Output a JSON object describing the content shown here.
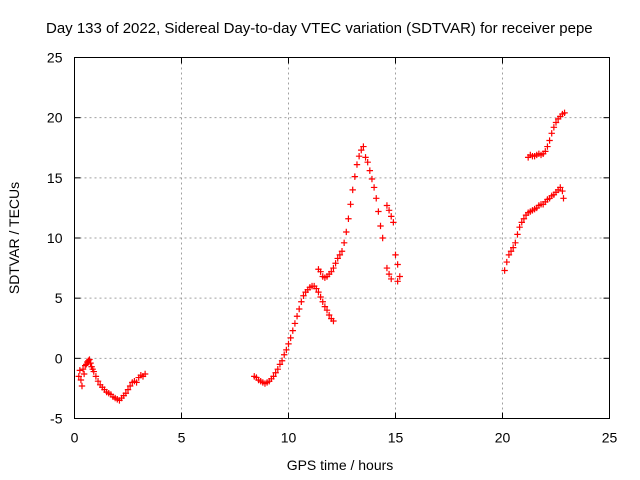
{
  "chart_data": {
    "type": "scatter",
    "title": "Day 133 of 2022, Sidereal Day-to-day VTEC variation (SDTVAR) for receiver pepe",
    "xlabel": "GPS time / hours",
    "ylabel": "SDTVAR / TECUs",
    "xlim": [
      0,
      25
    ],
    "ylim": [
      -5,
      25
    ],
    "xticks": [
      0,
      5,
      10,
      15,
      20,
      25
    ],
    "yticks": [
      -5,
      0,
      5,
      10,
      15,
      20,
      25
    ],
    "grid": true,
    "marker": "+",
    "color": "#ff0000",
    "series": [
      {
        "points": [
          [
            0.2,
            -1.5
          ],
          [
            0.25,
            -1.0
          ],
          [
            0.3,
            -1.8
          ],
          [
            0.35,
            -2.3
          ],
          [
            0.4,
            -0.9
          ],
          [
            0.45,
            -1.3
          ],
          [
            0.5,
            -0.6
          ],
          [
            0.55,
            -0.5
          ],
          [
            0.6,
            -0.3
          ],
          [
            0.65,
            -0.2
          ],
          [
            0.7,
            -0.1
          ],
          [
            0.75,
            -0.4
          ],
          [
            0.8,
            -0.7
          ],
          [
            0.85,
            -0.9
          ],
          [
            0.9,
            -1.1
          ],
          [
            1.0,
            -1.5
          ],
          [
            1.1,
            -1.9
          ],
          [
            1.2,
            -2.2
          ],
          [
            1.3,
            -2.4
          ],
          [
            1.4,
            -2.6
          ],
          [
            1.5,
            -2.8
          ],
          [
            1.6,
            -2.9
          ],
          [
            1.7,
            -3.0
          ],
          [
            1.8,
            -3.2
          ],
          [
            1.9,
            -3.3
          ],
          [
            2.0,
            -3.4
          ],
          [
            2.1,
            -3.5
          ],
          [
            2.2,
            -3.3
          ],
          [
            2.3,
            -3.1
          ],
          [
            2.4,
            -2.9
          ],
          [
            2.5,
            -2.6
          ],
          [
            2.6,
            -2.3
          ],
          [
            2.7,
            -2.0
          ],
          [
            2.8,
            -1.9
          ],
          [
            2.9,
            -2.0
          ],
          [
            3.0,
            -1.6
          ],
          [
            3.1,
            -1.4
          ],
          [
            3.2,
            -1.5
          ],
          [
            3.3,
            -1.3
          ],
          [
            8.4,
            -1.5
          ],
          [
            8.5,
            -1.6
          ],
          [
            8.6,
            -1.8
          ],
          [
            8.7,
            -1.9
          ],
          [
            8.8,
            -2.0
          ],
          [
            8.9,
            -2.1
          ],
          [
            9.0,
            -2.0
          ],
          [
            9.1,
            -1.9
          ],
          [
            9.2,
            -1.7
          ],
          [
            9.3,
            -1.5
          ],
          [
            9.4,
            -1.2
          ],
          [
            9.5,
            -0.9
          ],
          [
            9.6,
            -0.5
          ],
          [
            9.7,
            -0.2
          ],
          [
            9.8,
            0.3
          ],
          [
            9.9,
            0.7
          ],
          [
            10.0,
            1.2
          ],
          [
            10.1,
            1.7
          ],
          [
            10.2,
            2.3
          ],
          [
            10.3,
            2.9
          ],
          [
            10.4,
            3.5
          ],
          [
            10.5,
            4.1
          ],
          [
            10.6,
            4.7
          ],
          [
            10.7,
            5.2
          ],
          [
            10.8,
            5.5
          ],
          [
            10.9,
            5.7
          ],
          [
            11.0,
            5.9
          ],
          [
            11.1,
            6.0
          ],
          [
            11.2,
            6.0
          ],
          [
            11.3,
            5.8
          ],
          [
            11.4,
            5.5
          ],
          [
            11.5,
            5.1
          ],
          [
            11.6,
            4.7
          ],
          [
            11.7,
            4.3
          ],
          [
            11.8,
            4.0
          ],
          [
            11.9,
            3.6
          ],
          [
            12.0,
            3.3
          ],
          [
            12.1,
            3.1
          ],
          [
            11.4,
            7.4
          ],
          [
            11.5,
            7.2
          ],
          [
            11.6,
            6.8
          ],
          [
            11.7,
            6.7
          ],
          [
            11.8,
            6.8
          ],
          [
            11.9,
            7.0
          ],
          [
            12.0,
            7.2
          ],
          [
            12.1,
            7.5
          ],
          [
            12.2,
            7.9
          ],
          [
            12.3,
            8.3
          ],
          [
            12.4,
            8.6
          ],
          [
            12.5,
            8.9
          ],
          [
            12.6,
            9.6
          ],
          [
            12.7,
            10.5
          ],
          [
            12.8,
            11.6
          ],
          [
            12.9,
            12.8
          ],
          [
            13.0,
            14.0
          ],
          [
            13.1,
            15.1
          ],
          [
            13.2,
            16.1
          ],
          [
            13.3,
            16.8
          ],
          [
            13.4,
            17.3
          ],
          [
            13.5,
            17.6
          ],
          [
            13.6,
            16.7
          ],
          [
            13.7,
            16.3
          ],
          [
            13.8,
            15.6
          ],
          [
            13.9,
            14.9
          ],
          [
            14.0,
            14.2
          ],
          [
            14.1,
            13.3
          ],
          [
            14.2,
            12.2
          ],
          [
            14.3,
            11.0
          ],
          [
            14.4,
            10.0
          ],
          [
            14.6,
            12.7
          ],
          [
            14.7,
            12.3
          ],
          [
            14.8,
            11.8
          ],
          [
            14.9,
            11.3
          ],
          [
            14.6,
            7.5
          ],
          [
            14.7,
            7.0
          ],
          [
            14.8,
            6.6
          ],
          [
            15.0,
            8.6
          ],
          [
            15.1,
            7.8
          ],
          [
            15.2,
            6.8
          ],
          [
            15.1,
            6.4
          ],
          [
            20.1,
            7.3
          ],
          [
            20.2,
            8.0
          ],
          [
            20.3,
            8.6
          ],
          [
            20.4,
            8.9
          ],
          [
            20.5,
            9.2
          ],
          [
            20.6,
            9.6
          ],
          [
            20.7,
            10.3
          ],
          [
            20.8,
            10.9
          ],
          [
            20.9,
            11.3
          ],
          [
            21.0,
            11.6
          ],
          [
            21.1,
            11.9
          ],
          [
            21.2,
            12.1
          ],
          [
            21.3,
            12.2
          ],
          [
            21.4,
            12.3
          ],
          [
            21.5,
            12.4
          ],
          [
            21.6,
            12.5
          ],
          [
            21.7,
            12.7
          ],
          [
            21.8,
            12.8
          ],
          [
            21.9,
            12.8
          ],
          [
            22.0,
            13.0
          ],
          [
            22.1,
            13.2
          ],
          [
            22.2,
            13.3
          ],
          [
            22.3,
            13.5
          ],
          [
            22.4,
            13.6
          ],
          [
            22.5,
            13.8
          ],
          [
            22.6,
            14.0
          ],
          [
            22.7,
            14.2
          ],
          [
            22.8,
            13.9
          ],
          [
            22.85,
            13.3
          ],
          [
            21.2,
            16.7
          ],
          [
            21.3,
            16.9
          ],
          [
            21.4,
            16.8
          ],
          [
            21.5,
            16.8
          ],
          [
            21.6,
            16.9
          ],
          [
            21.7,
            17.0
          ],
          [
            21.8,
            16.9
          ],
          [
            21.9,
            17.0
          ],
          [
            22.0,
            17.2
          ],
          [
            22.1,
            17.6
          ],
          [
            22.2,
            18.1
          ],
          [
            22.3,
            18.7
          ],
          [
            22.4,
            19.2
          ],
          [
            22.5,
            19.6
          ],
          [
            22.6,
            19.9
          ],
          [
            22.7,
            20.1
          ],
          [
            22.8,
            20.3
          ],
          [
            22.9,
            20.4
          ]
        ]
      }
    ]
  }
}
